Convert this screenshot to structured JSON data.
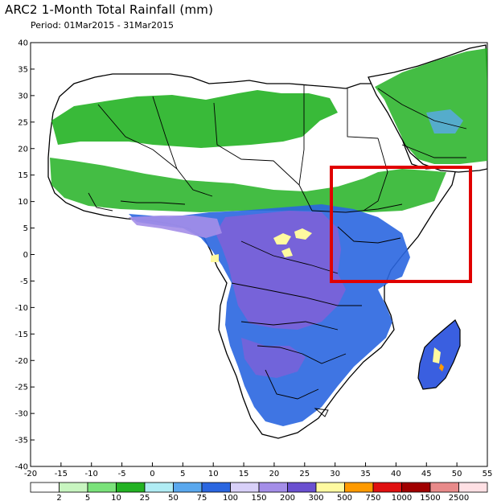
{
  "header": {
    "title": "ARC2 1-Month Total Rainfall (mm)",
    "period": "Period: 01Mar2015 - 31Mar2015"
  },
  "axes": {
    "lon_ticks": [
      -20,
      -15,
      -10,
      -5,
      0,
      5,
      10,
      15,
      20,
      25,
      30,
      35,
      40,
      45,
      50,
      55
    ],
    "lat_ticks": [
      40,
      35,
      30,
      25,
      20,
      15,
      10,
      5,
      0,
      -5,
      -10,
      -15,
      -20,
      -25,
      -30,
      -35,
      -40
    ]
  },
  "legend": {
    "bins": [
      {
        "color": "#ffffff"
      },
      {
        "color": "#c8f5c0"
      },
      {
        "color": "#7ae27a"
      },
      {
        "color": "#23b223"
      },
      {
        "color": "#b0ecf4"
      },
      {
        "color": "#5aa8ee"
      },
      {
        "color": "#2a66e0"
      },
      {
        "color": "#d8d0f8"
      },
      {
        "color": "#a48ee8"
      },
      {
        "color": "#6a50d0"
      },
      {
        "color": "#fffaa0"
      },
      {
        "color": "#ff9a00"
      },
      {
        "color": "#e01010"
      },
      {
        "color": "#a00000"
      },
      {
        "color": "#e88a8a"
      },
      {
        "color": "#ffe0e4"
      }
    ],
    "labels": [
      "2",
      "5",
      "10",
      "25",
      "50",
      "75",
      "100",
      "150",
      "200",
      "300",
      "500",
      "750",
      "1000",
      "1500",
      "2500"
    ]
  },
  "highlight": {
    "color": "#e00000",
    "lon_range": [
      30,
      53
    ],
    "lat_range": [
      -5,
      17
    ]
  }
}
